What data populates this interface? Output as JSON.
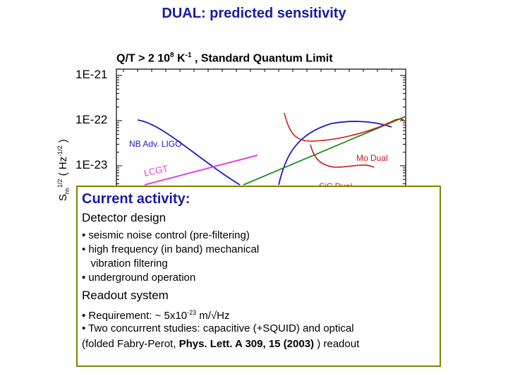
{
  "title": "DUAL: predicted sensitivity",
  "subtitle": {
    "part1": "Q/T > 2 10",
    "exp1": "8",
    "part2": " K",
    "exp2": "-1",
    "part3": "  ,  Standard Quantum Limit"
  },
  "chart_data": {
    "type": "line",
    "y_scale": "log",
    "y_ticks": [
      "1E-21",
      "1E-22",
      "1E-23"
    ],
    "ylabel": {
      "main": "S",
      "sub": "hh",
      "exp1": "1/2",
      "paren": "( Hz",
      "exp2": "-1/2",
      "close": " )"
    },
    "series": [
      {
        "name": "NB Adv. LIGO",
        "color": "#1a1ac8"
      },
      {
        "name": "LCGT",
        "color": "#e040e0"
      },
      {
        "name": "Mo Dual",
        "color": "#d01818"
      },
      {
        "name": "SiC Dual",
        "color": "#d01818"
      },
      {
        "name": "",
        "color": "#1c8c1c"
      }
    ]
  },
  "overlay": {
    "heading": "Current activity:",
    "section1": "Detector design",
    "bullets1": [
      "• seismic noise control (pre-filtering)",
      "• high frequency (in band) mechanical",
      "   vibration filtering",
      "• underground operation"
    ],
    "section2": "Readout system",
    "req_prefix": "• Requirement: ~ 5x10",
    "req_exp": "-23",
    "req_suffix": " m/√Hz",
    "line2": "• Two concurrent studies: capacitive (+SQUID) and optical",
    "line3_prefix": "(folded Fabry-Perot, ",
    "line3_bold": "Phys. Lett. A 309, 15 (2003)",
    "line3_suffix": " ) readout"
  }
}
